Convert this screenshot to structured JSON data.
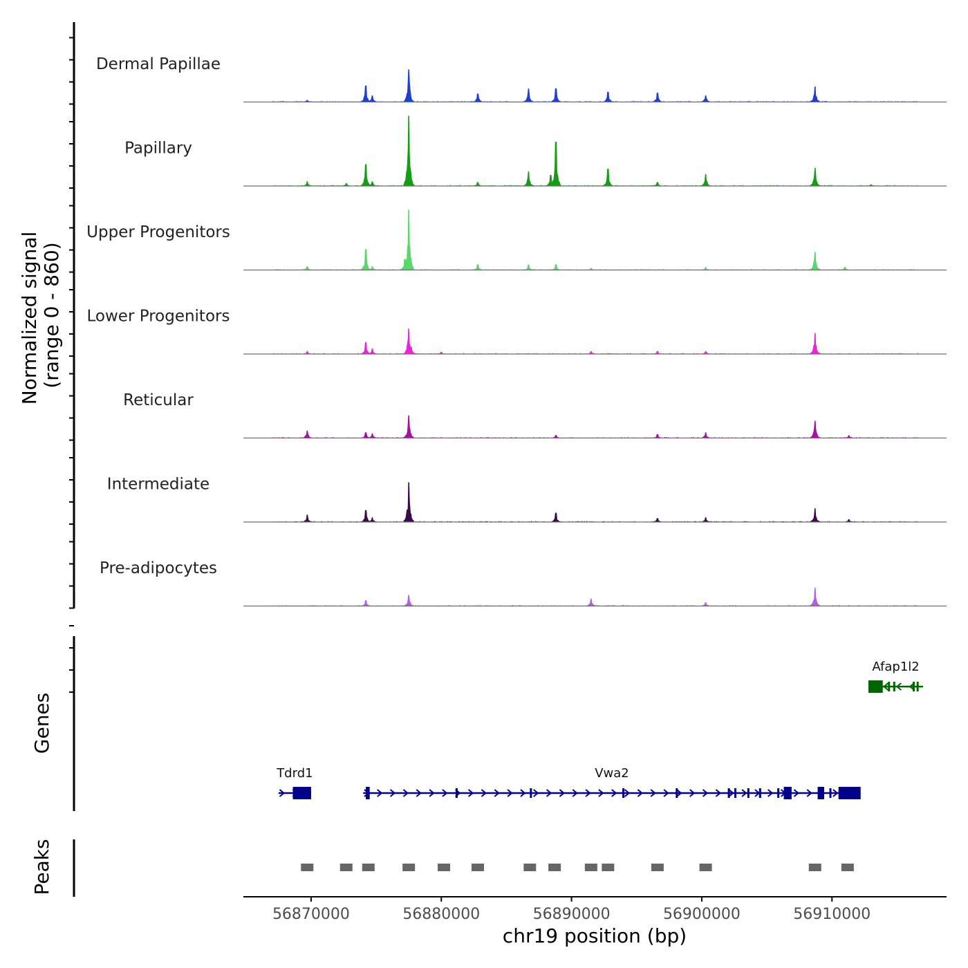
{
  "chart_data": {
    "type": "area",
    "chromosome": "chr19",
    "xlabel": "chr19 position (bp)",
    "xlim": [
      56864800,
      56918800
    ],
    "xticks": [
      56870000,
      56880000,
      56890000,
      56900000,
      56910000
    ],
    "xtick_labels": [
      "56870000",
      "56880000",
      "56890000",
      "56900000",
      "56910000"
    ],
    "ylabel_line1": "Normalized signal",
    "ylabel_line2": "(range 0 - 860)",
    "ylim": [
      0,
      860
    ],
    "series": [
      {
        "name": "Dermal Papillae",
        "color": "#1f3fd0",
        "peaks": [
          [
            56869700,
            20
          ],
          [
            56874200,
            180
          ],
          [
            56874700,
            70
          ],
          [
            56877500,
            360
          ],
          [
            56882800,
            90
          ],
          [
            56886700,
            150
          ],
          [
            56888800,
            150
          ],
          [
            56892800,
            110
          ],
          [
            56896600,
            100
          ],
          [
            56900300,
            70
          ],
          [
            56908700,
            170
          ]
        ]
      },
      {
        "name": "Papillary",
        "color": "#12a012",
        "peaks": [
          [
            56869700,
            50
          ],
          [
            56872700,
            30
          ],
          [
            56874200,
            240
          ],
          [
            56874700,
            50
          ],
          [
            56877500,
            780
          ],
          [
            56882800,
            40
          ],
          [
            56886700,
            160
          ],
          [
            56888400,
            120
          ],
          [
            56888800,
            490
          ],
          [
            56892800,
            190
          ],
          [
            56896600,
            40
          ],
          [
            56900300,
            130
          ],
          [
            56908700,
            200
          ],
          [
            56913000,
            15
          ]
        ]
      },
      {
        "name": "Upper Progenitors",
        "color": "#5ad66a",
        "peaks": [
          [
            56869700,
            40
          ],
          [
            56874200,
            230
          ],
          [
            56874700,
            40
          ],
          [
            56877200,
            120
          ],
          [
            56877500,
            670
          ],
          [
            56882800,
            60
          ],
          [
            56886700,
            60
          ],
          [
            56888800,
            60
          ],
          [
            56891500,
            20
          ],
          [
            56900300,
            30
          ],
          [
            56908700,
            200
          ],
          [
            56911000,
            30
          ]
        ]
      },
      {
        "name": "Lower Progenitors",
        "color": "#e827d4",
        "peaks": [
          [
            56869700,
            30
          ],
          [
            56874200,
            130
          ],
          [
            56874700,
            60
          ],
          [
            56877500,
            280
          ],
          [
            56877700,
            80
          ],
          [
            56880000,
            20
          ],
          [
            56891500,
            30
          ],
          [
            56896600,
            30
          ],
          [
            56900300,
            30
          ],
          [
            56908700,
            230
          ]
        ]
      },
      {
        "name": "Reticular",
        "color": "#a60fa1",
        "peaks": [
          [
            56869700,
            80
          ],
          [
            56874200,
            60
          ],
          [
            56874700,
            50
          ],
          [
            56877500,
            250
          ],
          [
            56888800,
            30
          ],
          [
            56896600,
            40
          ],
          [
            56900300,
            60
          ],
          [
            56908700,
            190
          ],
          [
            56911300,
            30
          ]
        ]
      },
      {
        "name": "Intermediate",
        "color": "#3a0a4a",
        "peaks": [
          [
            56869700,
            80
          ],
          [
            56874200,
            130
          ],
          [
            56874700,
            50
          ],
          [
            56877500,
            440
          ],
          [
            56888800,
            100
          ],
          [
            56896600,
            40
          ],
          [
            56900300,
            50
          ],
          [
            56908700,
            150
          ],
          [
            56911300,
            30
          ]
        ]
      },
      {
        "name": "Pre-adipocytes",
        "color": "#b65ae8",
        "peaks": [
          [
            56874200,
            60
          ],
          [
            56877500,
            120
          ],
          [
            56891500,
            80
          ],
          [
            56900300,
            40
          ],
          [
            56908700,
            200
          ]
        ]
      }
    ],
    "genes": [
      {
        "name": "Tdrd1",
        "strand": "+",
        "color": "#00008b",
        "start": 56867500,
        "end": 56870000,
        "exons": [
          [
            56868600,
            56870000
          ]
        ]
      },
      {
        "name": "Vwa2",
        "strand": "+",
        "color": "#00008b",
        "start": 56874000,
        "end": 56912200,
        "exons": [
          [
            56874200,
            56874500
          ],
          [
            56881100,
            56881200
          ],
          [
            56886800,
            56886900
          ],
          [
            56893900,
            56894000
          ],
          [
            56898000,
            56898100
          ],
          [
            56902000,
            56902100
          ],
          [
            56902500,
            56902600
          ],
          [
            56903500,
            56903550
          ],
          [
            56904400,
            56904500
          ],
          [
            56905800,
            56905900
          ],
          [
            56906300,
            56906900
          ],
          [
            56908900,
            56909400
          ],
          [
            56909800,
            56909900
          ],
          [
            56910500,
            56912200
          ]
        ]
      },
      {
        "name": "Afap1l2",
        "strand": "-",
        "color": "#006400",
        "start": 56912800,
        "end": 56917000,
        "exons": [
          [
            56912800,
            56913900
          ],
          [
            56914300,
            56914450
          ],
          [
            56914700,
            56914850
          ],
          [
            56916200,
            56916300
          ],
          [
            56916500,
            56916600
          ]
        ]
      }
    ],
    "peaks_track_label": "Peaks",
    "genes_track_label": "Genes",
    "peak_regions": [
      56869700,
      56872700,
      56874400,
      56877500,
      56880200,
      56882800,
      56886800,
      56888700,
      56891500,
      56892800,
      56896600,
      56900300,
      56908700,
      56911200
    ]
  }
}
